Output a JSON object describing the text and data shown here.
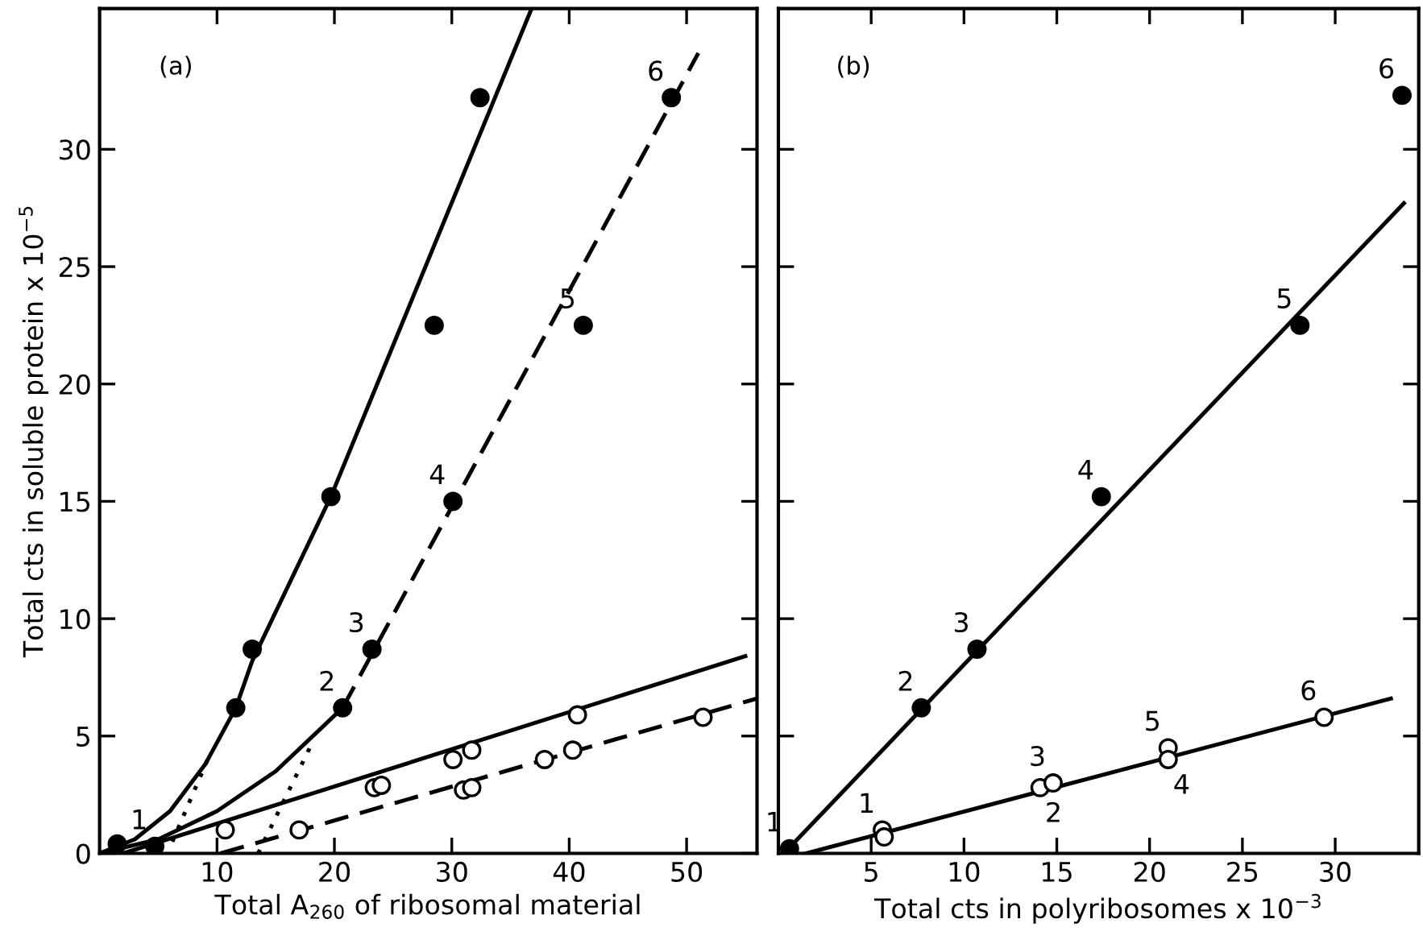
{
  "chart_data": [
    {
      "type": "scatter",
      "title": "(a)",
      "xlabel": "Total A$_{260}$ of ribosomal material",
      "ylabel": "Total cts in soluble protein x 10$^{−5}$",
      "xlim": [
        0,
        56
      ],
      "ylim": [
        0,
        36
      ],
      "xticks": [
        10,
        20,
        30,
        40,
        50
      ],
      "yticks": [
        0,
        5,
        10,
        15,
        20,
        25,
        30
      ],
      "series": [
        {
          "type": "line",
          "color": "#000000",
          "marker": "none",
          "line_style": "solid",
          "x": [
            0,
            3,
            6,
            9,
            11.6,
            13,
            19.7,
            36.8
          ],
          "values": [
            0,
            0.6,
            1.8,
            3.8,
            6.2,
            8.2,
            15.2,
            36
          ]
        },
        {
          "type": "line",
          "color": "#000000",
          "marker": "none",
          "line_style": "solid",
          "x": [
            0,
            5,
            10,
            15,
            20.7
          ],
          "values": [
            0,
            0.6,
            1.8,
            3.5,
            6.2
          ]
        },
        {
          "type": "line",
          "color": "#000000",
          "marker": "none",
          "line_style": "dashed",
          "x": [
            20.7,
            51
          ],
          "values": [
            6.2,
            34.1
          ]
        },
        {
          "type": "line",
          "color": "#000000",
          "marker": "none",
          "line_style": "dotted",
          "x": [
            6.2,
            9.2
          ],
          "values": [
            0.5,
            4.0
          ]
        },
        {
          "type": "line",
          "color": "#000000",
          "marker": "none",
          "line_style": "dotted",
          "x": [
            13.5,
            18.2
          ],
          "values": [
            0,
            4.8
          ]
        },
        {
          "type": "line",
          "color": "#000000",
          "marker": "none",
          "line_style": "solid",
          "x": [
            2,
            55
          ],
          "values": [
            0,
            8.4
          ]
        },
        {
          "type": "line",
          "color": "#000000",
          "marker": "none",
          "line_style": "dashed",
          "x": [
            10.3,
            56
          ],
          "values": [
            0,
            6.6
          ]
        },
        {
          "color": "#000000",
          "marker": "circle",
          "x": [
            1.5,
            11.6,
            13,
            19.7,
            28.5,
            32.4
          ],
          "values": [
            0.4,
            6.2,
            8.7,
            15.2,
            22.5,
            32.2
          ]
        },
        {
          "color": "#000000",
          "marker": "circle",
          "x": [
            4.7,
            20.7,
            23.2,
            30.1,
            41.2,
            48.7
          ],
          "values": [
            0.3,
            6.2,
            8.7,
            15.0,
            22.5,
            32.2
          ]
        },
        {
          "color": "#ffffff",
          "marker": "circle",
          "x": [
            10.7,
            23.4,
            24.0,
            30.1,
            31.7,
            40.7
          ],
          "values": [
            1.0,
            2.8,
            2.9,
            4.0,
            4.4,
            5.9
          ]
        },
        {
          "color": "#ffffff",
          "marker": "circle",
          "x": [
            17.0,
            31.0,
            31.7,
            37.9,
            40.3,
            51.4
          ],
          "values": [
            1.0,
            2.7,
            2.8,
            4.0,
            4.4,
            5.8
          ]
        }
      ],
      "annotations": [
        {
          "text": "1",
          "x": 4.7,
          "y": 0.3
        },
        {
          "text": "2",
          "x": 20.7,
          "y": 6.2
        },
        {
          "text": "3",
          "x": 23.2,
          "y": 8.7
        },
        {
          "text": "4",
          "x": 30.1,
          "y": 15.0
        },
        {
          "text": "5",
          "x": 41.2,
          "y": 22.5
        },
        {
          "text": "6",
          "x": 48.7,
          "y": 32.2
        }
      ]
    },
    {
      "type": "scatter",
      "title": "(b)",
      "xlabel": "Total cts in polyribosomes x 10$^{−3}$",
      "tick_labels": "x",
      "xlim": [
        0,
        34.5
      ],
      "ylim": [
        0,
        36
      ],
      "xticks": [
        5,
        10,
        15,
        20,
        25,
        30
      ],
      "yticks": [
        5,
        10,
        15,
        20,
        25,
        30
      ],
      "series": [
        {
          "type": "line",
          "color": "#000000",
          "marker": "none",
          "line_style": "solid",
          "x": [
            0.3,
            33.7
          ],
          "values": [
            0,
            27.7
          ]
        },
        {
          "type": "line",
          "color": "#000000",
          "marker": "none",
          "line_style": "solid",
          "x": [
            1.5,
            33.0
          ],
          "values": [
            0,
            6.6
          ]
        },
        {
          "color": "#000000",
          "marker": "circle",
          "x": [
            0.6,
            7.7,
            10.7,
            17.4,
            28.1,
            33.6
          ],
          "values": [
            0.2,
            6.2,
            8.7,
            15.2,
            22.5,
            32.3
          ]
        },
        {
          "color": "#ffffff",
          "marker": "circle",
          "x": [
            5.6,
            5.7,
            14.1,
            14.8,
            21.0,
            21.0,
            29.4
          ],
          "values": [
            1.0,
            0.7,
            2.8,
            3.0,
            4.5,
            4.0,
            5.8
          ]
        }
      ],
      "annotations": [
        {
          "text": "1",
          "x": 0.6,
          "y": 0.2
        },
        {
          "text": "2",
          "x": 7.7,
          "y": 6.2
        },
        {
          "text": "3",
          "x": 10.7,
          "y": 8.7
        },
        {
          "text": "4",
          "x": 17.4,
          "y": 15.2
        },
        {
          "text": "5",
          "x": 28.1,
          "y": 22.5
        },
        {
          "text": "6",
          "x": 33.6,
          "y": 32.3
        },
        {
          "text": "1",
          "x": 5.6,
          "y": 1.0
        },
        {
          "text": "2",
          "x": 14.1,
          "y": 2.8
        },
        {
          "text": "3",
          "x": 14.8,
          "y": 3.0
        },
        {
          "text": "5",
          "x": 21.0,
          "y": 4.5
        },
        {
          "text": "4",
          "x": 21.0,
          "y": 4.0
        },
        {
          "text": "6",
          "x": 29.4,
          "y": 5.8
        }
      ]
    }
  ]
}
